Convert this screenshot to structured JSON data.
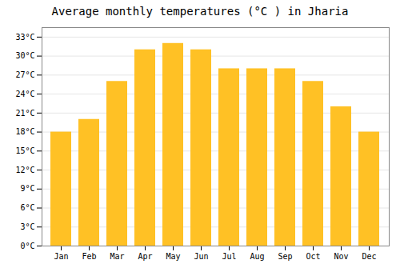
{
  "chart_data": {
    "type": "bar",
    "title": "Average monthly temperatures (°C ) in Jharia",
    "categories": [
      "Jan",
      "Feb",
      "Mar",
      "Apr",
      "May",
      "Jun",
      "Jul",
      "Aug",
      "Sep",
      "Oct",
      "Nov",
      "Dec"
    ],
    "values": [
      18,
      20,
      26,
      31,
      32,
      31,
      28,
      28,
      28,
      26,
      22,
      18
    ],
    "color": "#FFC125",
    "ylim": [
      0,
      34.5
    ],
    "yticks": [
      {
        "value": 0,
        "label": "0°C"
      },
      {
        "value": 3,
        "label": "3°C"
      },
      {
        "value": 6,
        "label": "6°C"
      },
      {
        "value": 9,
        "label": "9°C"
      },
      {
        "value": 12,
        "label": "12°C"
      },
      {
        "value": 15,
        "label": "15°C"
      },
      {
        "value": 18,
        "label": "18°C"
      },
      {
        "value": 21,
        "label": "21°C"
      },
      {
        "value": 24,
        "label": "24°C"
      },
      {
        "value": 27,
        "label": "27°C"
      },
      {
        "value": 30,
        "label": "30°C"
      },
      {
        "value": 33,
        "label": "33°C"
      }
    ],
    "grid": true
  }
}
